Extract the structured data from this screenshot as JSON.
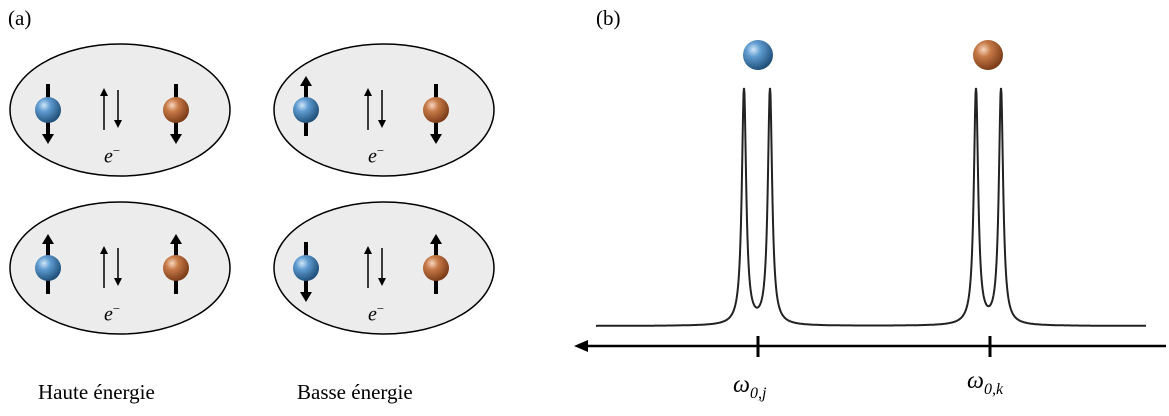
{
  "panels": {
    "a": {
      "label": "(a)"
    },
    "b": {
      "label": "(b)"
    }
  },
  "electron_label": "e",
  "electron_charge": "−",
  "captions": {
    "left": "Haute énergie",
    "right": "Basse énergie"
  },
  "axis": {
    "peak_j": {
      "symbol": "ω",
      "sub": "0,j"
    },
    "peak_k": {
      "symbol": "ω",
      "sub": "0,k"
    }
  },
  "states": [
    {
      "row": "top",
      "column": "haute",
      "spin_j": "down",
      "spin_k": "down"
    },
    {
      "row": "top",
      "column": "basse",
      "spin_j": "up",
      "spin_k": "down"
    },
    {
      "row": "bottom",
      "column": "haute",
      "spin_j": "up",
      "spin_k": "up"
    },
    {
      "row": "bottom",
      "column": "basse",
      "spin_j": "down",
      "spin_k": "up"
    }
  ],
  "colors": {
    "spin_j": "#3f7fb0",
    "spin_k": "#b5683a",
    "ellipse_fill": "#ececec",
    "spectrum_line": "#222222"
  }
}
